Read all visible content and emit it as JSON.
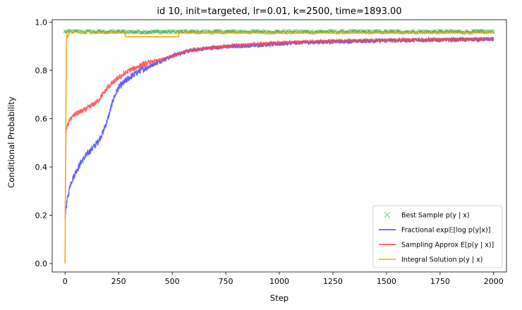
{
  "chart_data": {
    "type": "line",
    "title": "id 10, init=targeted, lr=0.01, k=2500, time=1893.00",
    "xlabel": "Step",
    "ylabel": "Conditional Probability",
    "xlim": [
      -60,
      2060
    ],
    "ylim": [
      -0.035,
      1.01
    ],
    "xticks": [
      "0",
      "250",
      "500",
      "750",
      "1000",
      "1250",
      "1500",
      "1750",
      "2000"
    ],
    "yticks": [
      "0.0",
      "0.2",
      "0.4",
      "0.6",
      "0.8",
      "1.0"
    ],
    "grid": false,
    "legend_position": "lower-right",
    "series": [
      {
        "name": "Best Sample p(y | x)",
        "marker": "x",
        "color": "#2ca02c",
        "x": [
          0,
          2000
        ],
        "y": [
          0.955,
          0.965
        ]
      },
      {
        "name": "Fractional exp𝔼[log p(y|x)]",
        "color": "#4444ff",
        "x": [
          0,
          10,
          25,
          50,
          75,
          100,
          130,
          150,
          175,
          200,
          225,
          250,
          300,
          350,
          400,
          450,
          500,
          550,
          600,
          700,
          800,
          900,
          1000,
          1100,
          1200,
          1300,
          1400,
          1500,
          1600,
          1700,
          1800,
          1900,
          2000
        ],
        "y": [
          0.2,
          0.26,
          0.33,
          0.38,
          0.42,
          0.45,
          0.48,
          0.5,
          0.54,
          0.6,
          0.68,
          0.73,
          0.77,
          0.8,
          0.82,
          0.84,
          0.86,
          0.875,
          0.885,
          0.895,
          0.9,
          0.905,
          0.91,
          0.915,
          0.918,
          0.92,
          0.922,
          0.924,
          0.925,
          0.926,
          0.927,
          0.928,
          0.93
        ]
      },
      {
        "name": "Sampling Approx E[p(y | x)]",
        "color": "#ff4444",
        "x": [
          0,
          5,
          10,
          25,
          50,
          100,
          150,
          200,
          250,
          300,
          350,
          400,
          450,
          500,
          550,
          600,
          700,
          800,
          900,
          1000,
          1100,
          1200,
          1300,
          1400,
          1500,
          1600,
          1700,
          1800,
          1900,
          2000
        ],
        "y": [
          0.2,
          0.55,
          0.57,
          0.6,
          0.62,
          0.64,
          0.67,
          0.73,
          0.77,
          0.8,
          0.82,
          0.835,
          0.845,
          0.86,
          0.875,
          0.885,
          0.895,
          0.905,
          0.91,
          0.915,
          0.918,
          0.92,
          0.922,
          0.924,
          0.926,
          0.927,
          0.928,
          0.929,
          0.93,
          0.932
        ]
      },
      {
        "name": "Integral Solution p(y | x)",
        "color": "#ffa500",
        "x": [
          0,
          5,
          6,
          10,
          11,
          18,
          20,
          22,
          150,
          151,
          280,
          281,
          530,
          531,
          2000
        ],
        "y": [
          0.0,
          0.8,
          0.93,
          0.95,
          0.935,
          0.95,
          0.96,
          0.96,
          0.96,
          0.955,
          0.955,
          0.94,
          0.94,
          0.955,
          0.955
        ]
      }
    ]
  }
}
